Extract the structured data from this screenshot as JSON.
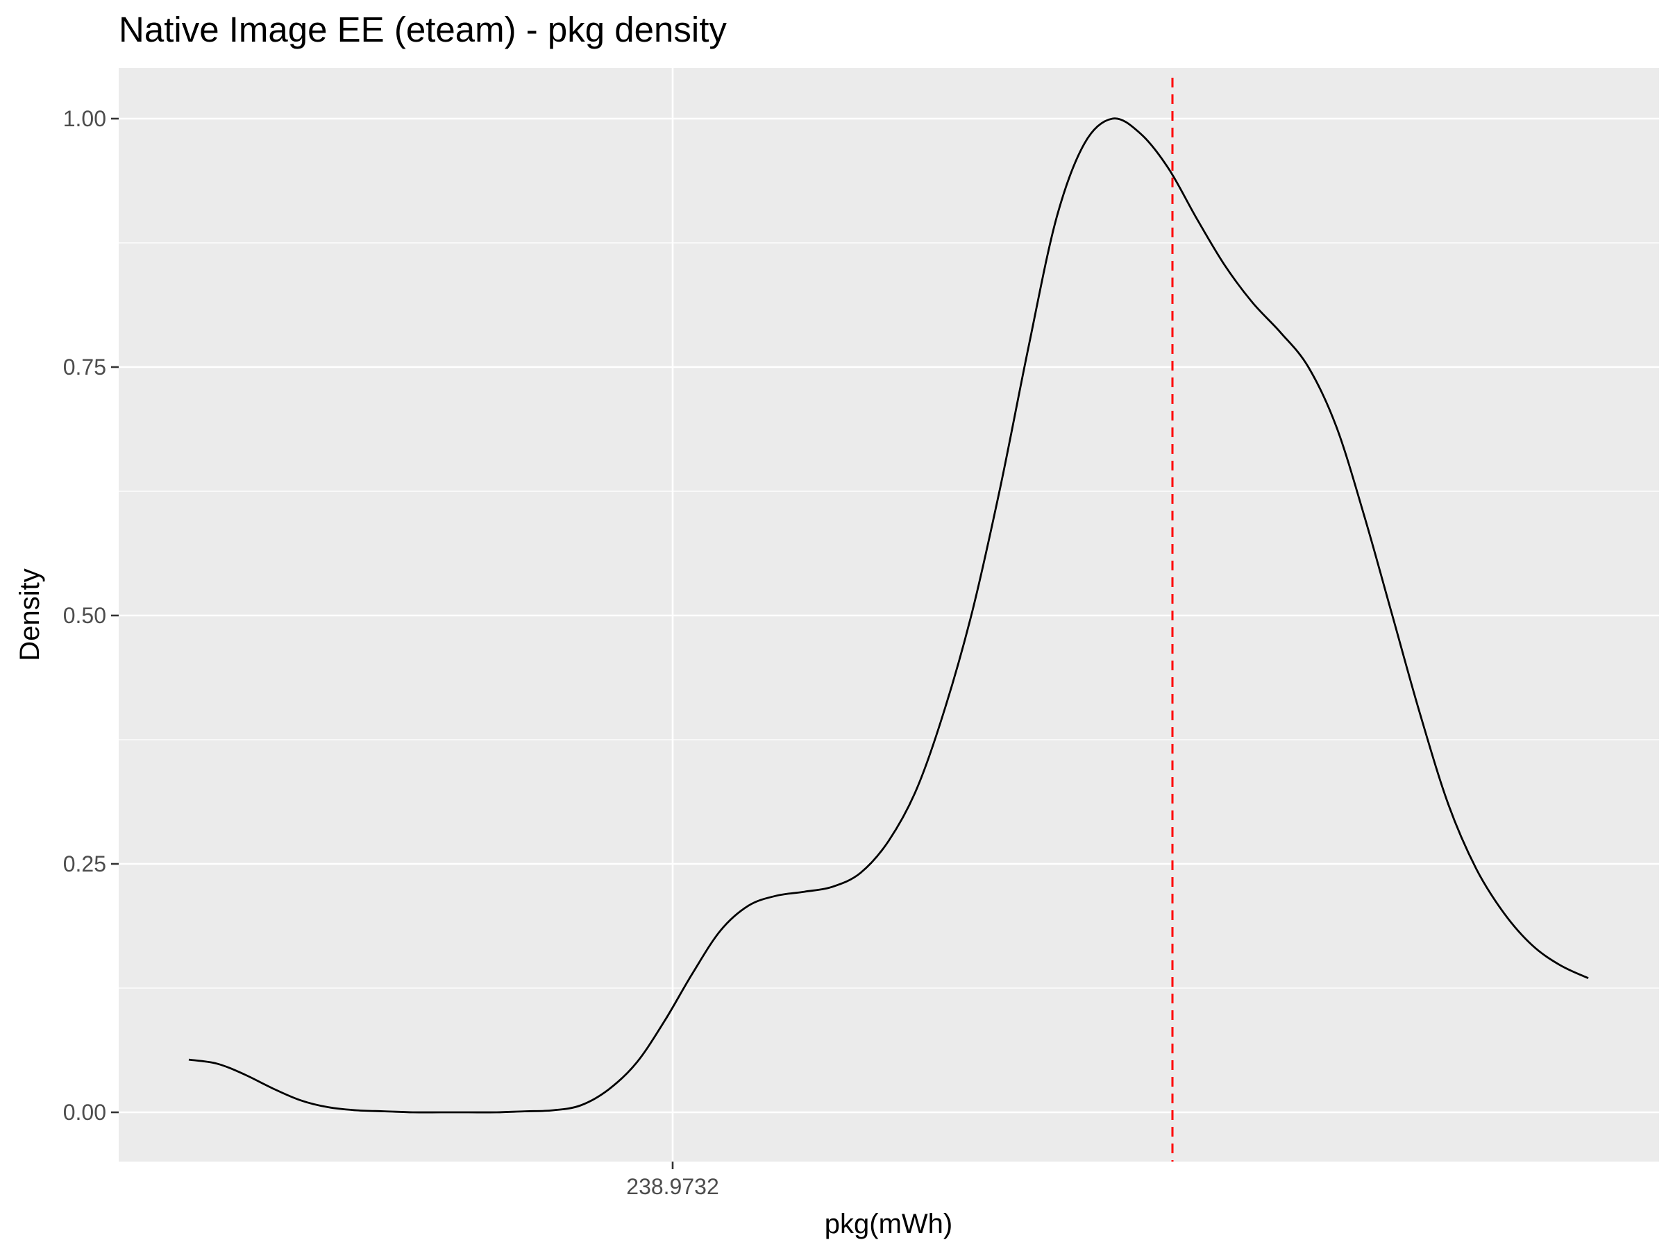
{
  "chart_data": {
    "type": "line",
    "title": "Native Image EE (eteam) - pkg density",
    "xlabel": "pkg(mWh)",
    "ylabel": "Density",
    "x_tick_labels": [
      "238.9732"
    ],
    "y_tick_labels": [
      "0.00",
      "0.25",
      "0.50",
      "0.75",
      "1.00"
    ],
    "y_ticks": [
      0,
      0.25,
      0.5,
      0.75,
      1.0
    ],
    "ylim": [
      -0.05,
      1.05
    ],
    "grid": true,
    "panel_background": "#EBEBEB",
    "line_color": "#000000",
    "reference_line": {
      "style": "dashed",
      "color": "#FF0000"
    },
    "series": [
      {
        "x": [
          0.0,
          0.02,
          0.04,
          0.06,
          0.08,
          0.1,
          0.12,
          0.14,
          0.16,
          0.18,
          0.2,
          0.22,
          0.24,
          0.26,
          0.28,
          0.3,
          0.32,
          0.34,
          0.36,
          0.38,
          0.4,
          0.42,
          0.44,
          0.46,
          0.48,
          0.5,
          0.52,
          0.54,
          0.56,
          0.58,
          0.6,
          0.62,
          0.64,
          0.66,
          0.68,
          0.7,
          0.72,
          0.74,
          0.76,
          0.78,
          0.8,
          0.82,
          0.84,
          0.86,
          0.88,
          0.9,
          0.92,
          0.94,
          0.96,
          0.98,
          1.0
        ],
        "values": [
          0.053,
          0.049,
          0.038,
          0.024,
          0.012,
          0.005,
          0.002,
          0.001,
          0.0,
          0.0,
          0.0,
          0.0,
          0.001,
          0.002,
          0.007,
          0.023,
          0.05,
          0.092,
          0.14,
          0.183,
          0.208,
          0.218,
          0.222,
          0.227,
          0.241,
          0.273,
          0.325,
          0.405,
          0.505,
          0.63,
          0.77,
          0.9,
          0.975,
          1.0,
          0.985,
          0.95,
          0.9,
          0.853,
          0.815,
          0.785,
          0.75,
          0.69,
          0.6,
          0.5,
          0.4,
          0.31,
          0.245,
          0.2,
          0.168,
          0.148,
          0.135
        ]
      }
    ]
  }
}
